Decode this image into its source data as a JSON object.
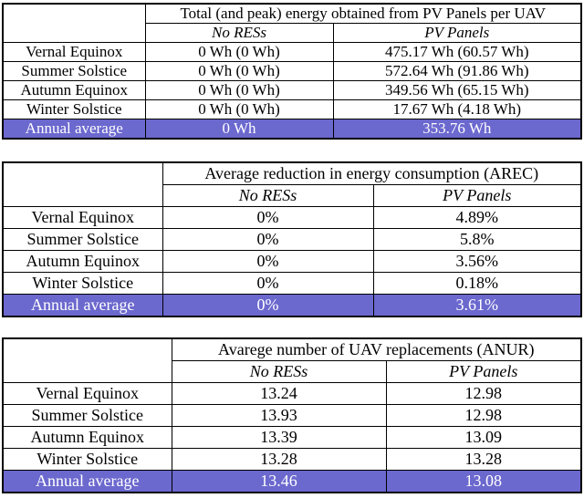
{
  "accent_color": "#6B68CE",
  "highlight_text_color": "#ffffff",
  "tables": [
    {
      "title": "Total (and peak) energy obtained from PV Panels per UAV",
      "columns": [
        "No RESs",
        "PV Panels"
      ],
      "rows": [
        {
          "label": "Vernal Equinox",
          "no_ress": "0 Wh (0 Wh)",
          "pv_panels": "475.17 Wh (60.57 Wh)"
        },
        {
          "label": "Summer Solstice",
          "no_ress": "0 Wh (0 Wh)",
          "pv_panels": "572.64 Wh (91.86 Wh)"
        },
        {
          "label": "Autumn Equinox",
          "no_ress": "0 Wh (0 Wh)",
          "pv_panels": "349.56 Wh (65.15 Wh)"
        },
        {
          "label": "Winter Solstice",
          "no_ress": "0 Wh (0 Wh)",
          "pv_panels": "17.67 Wh (4.18 Wh)"
        },
        {
          "label": "Annual average",
          "no_ress": "0 Wh",
          "pv_panels": "353.76 Wh"
        }
      ]
    },
    {
      "title": "Average reduction in energy consumption (AREC)",
      "columns": [
        "No RESs",
        "PV Panels"
      ],
      "rows": [
        {
          "label": "Vernal Equinox",
          "no_ress": "0%",
          "pv_panels": "4.89%"
        },
        {
          "label": "Summer Solstice",
          "no_ress": "0%",
          "pv_panels": "5.8%"
        },
        {
          "label": "Autumn Equinox",
          "no_ress": "0%",
          "pv_panels": "3.56%"
        },
        {
          "label": "Winter Solstice",
          "no_ress": "0%",
          "pv_panels": "0.18%"
        },
        {
          "label": "Annual average",
          "no_ress": "0%",
          "pv_panels": "3.61%"
        }
      ]
    },
    {
      "title": "Avarege number of UAV replacements (ANUR)",
      "columns": [
        "No RESs",
        "PV Panels"
      ],
      "rows": [
        {
          "label": "Vernal Equinox",
          "no_ress": "13.24",
          "pv_panels": "12.98"
        },
        {
          "label": "Summer Solstice",
          "no_ress": "13.93",
          "pv_panels": "12.98"
        },
        {
          "label": "Autumn Equinox",
          "no_ress": "13.39",
          "pv_panels": "13.09"
        },
        {
          "label": "Winter Solstice",
          "no_ress": "13.28",
          "pv_panels": "13.28"
        },
        {
          "label": "Annual average",
          "no_ress": "13.46",
          "pv_panels": "13.08"
        }
      ]
    }
  ]
}
